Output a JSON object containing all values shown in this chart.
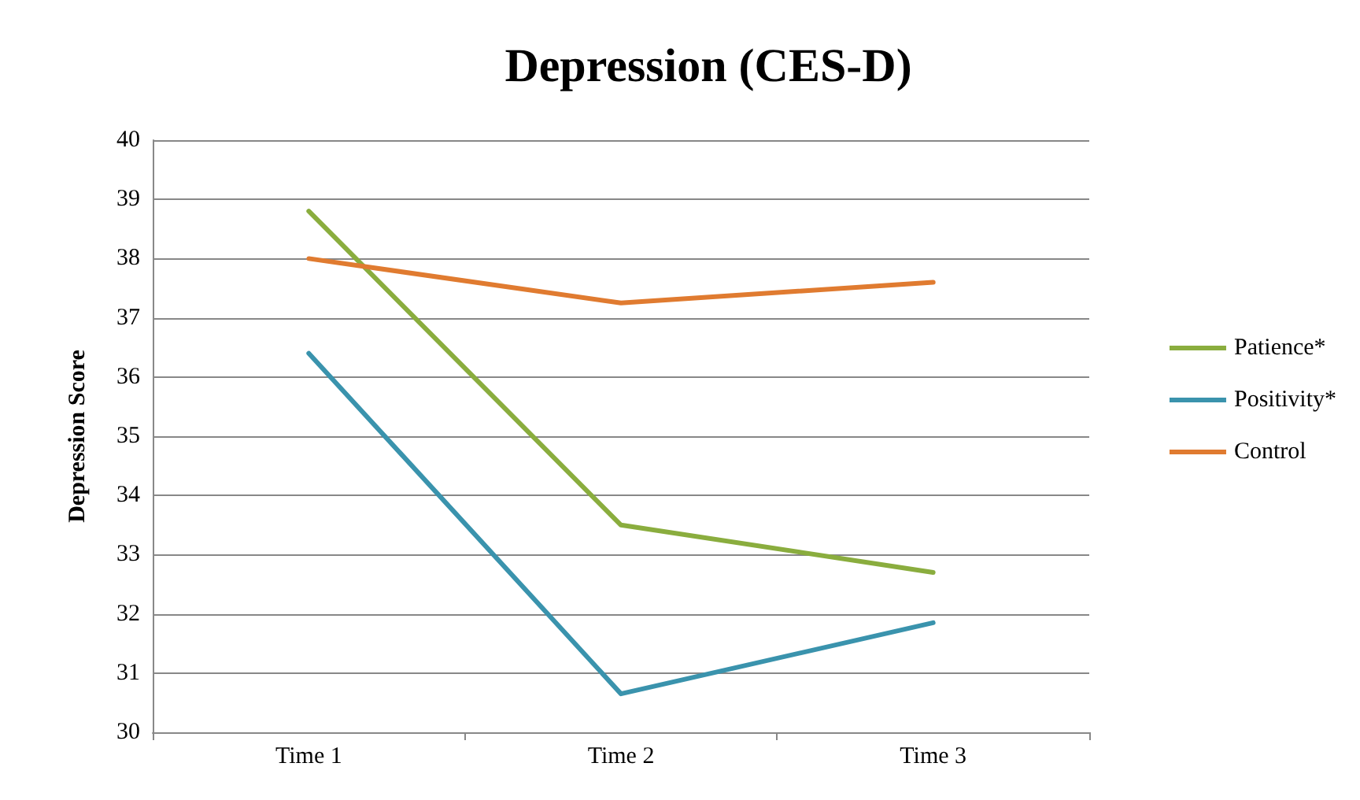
{
  "chart_data": {
    "type": "line",
    "title": "Depression (CES-D)",
    "ylabel": "Depression Score",
    "categories": [
      "Time 1",
      "Time 2",
      "Time 3"
    ],
    "series": [
      {
        "name": "Patience*",
        "color": "#8aad3e",
        "values": [
          38.8,
          33.5,
          32.7
        ]
      },
      {
        "name": "Positivity*",
        "color": "#3a93ad",
        "values": [
          36.4,
          30.65,
          31.85
        ]
      },
      {
        "name": "Control",
        "color": "#e07b30",
        "values": [
          38.0,
          37.25,
          37.6
        ]
      }
    ],
    "ylim": [
      30,
      40
    ],
    "yticks": [
      30,
      31,
      32,
      33,
      34,
      35,
      36,
      37,
      38,
      39,
      40
    ],
    "grid": "y",
    "legend": "right",
    "marker": "none",
    "line_style": "solid"
  }
}
